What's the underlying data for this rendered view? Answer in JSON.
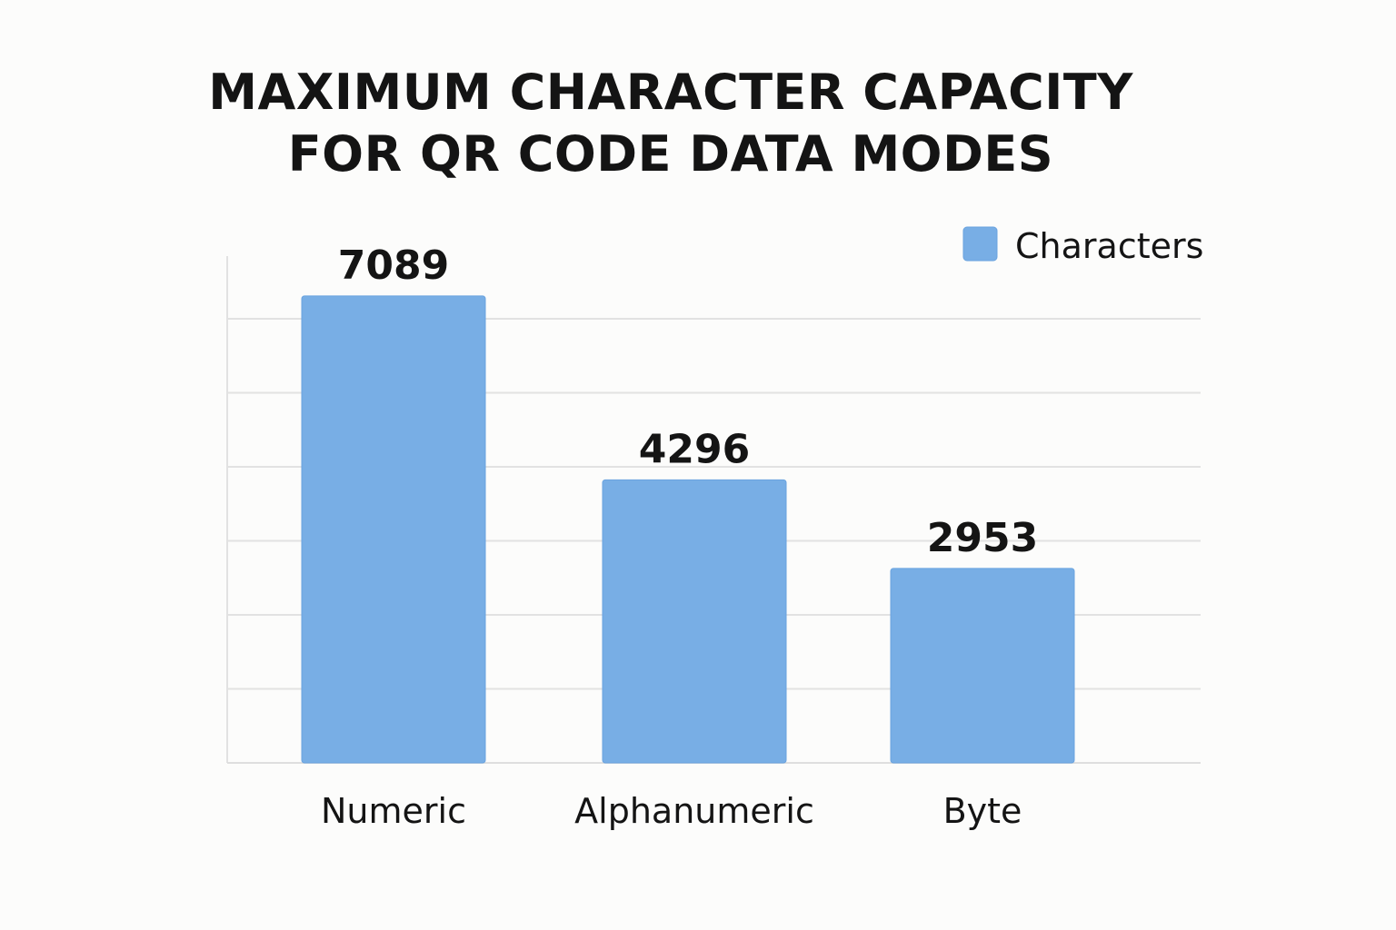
{
  "chart_data": {
    "type": "bar",
    "title_lines": [
      "MAXIMUM CHARACTER CAPACITY",
      "FOR QR CODE DATA MODES"
    ],
    "categories": [
      "Numeric",
      "Alphanumeric",
      "Byte"
    ],
    "series": [
      {
        "name": "Characters",
        "values": [
          7089,
          4296,
          2953
        ]
      }
    ],
    "data_labels": [
      "7089",
      "4296",
      "2953"
    ],
    "xlabel": "",
    "ylabel": "",
    "ylim": [
      0,
      7500
    ],
    "grid": true,
    "legend": "top-right",
    "colors": {
      "bar": "#78aee5",
      "bar_edge": "#6aa3df",
      "grid": "#e2e2e2",
      "text": "#141414"
    }
  }
}
